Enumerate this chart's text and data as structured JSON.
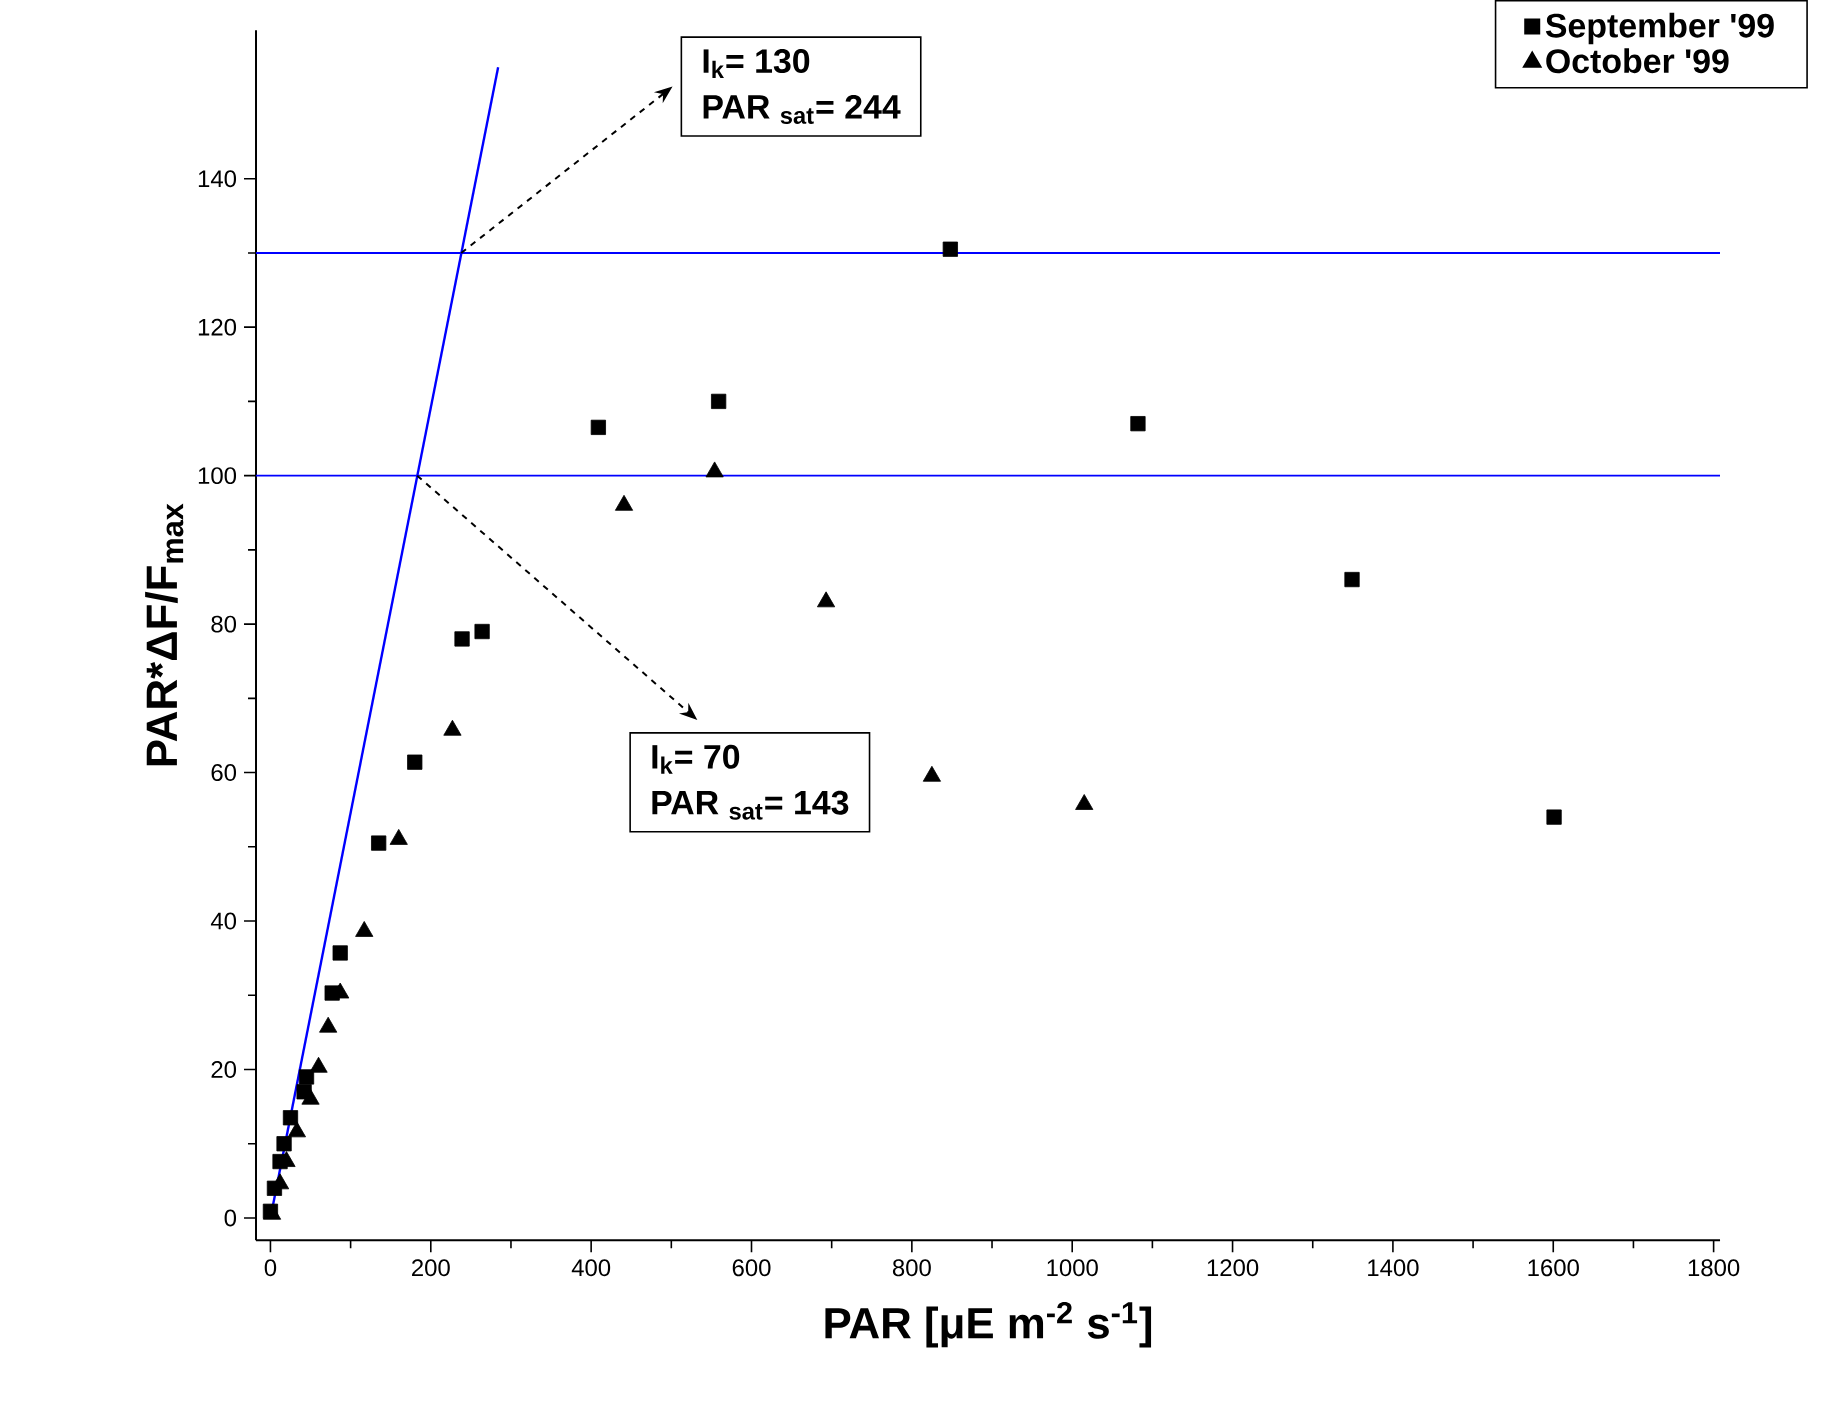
{
  "chart_data": {
    "type": "scatter",
    "xlabel": "PAR  [μE m$^{-2}$ s$^{-1}$]",
    "ylabel": "PAR*ΔF/F$_{max}$",
    "xlim": [
      -18,
      1808
    ],
    "ylim": [
      -3,
      160
    ],
    "xticks": [
      0,
      200,
      400,
      600,
      800,
      1000,
      1200,
      1400,
      1600,
      1800
    ],
    "yticks": [
      0,
      20,
      40,
      60,
      80,
      100,
      120,
      140
    ],
    "legend": "top right",
    "grid": false,
    "series": [
      {
        "name": "September '99",
        "color": "#000000",
        "marker": "square",
        "x": [
          0,
          5,
          12,
          17,
          25,
          42,
          45,
          77,
          87,
          135,
          180,
          239,
          264,
          409,
          559,
          848,
          1082,
          1349,
          1601
        ],
        "values": [
          0.9,
          4,
          7.6,
          10,
          13.5,
          17,
          19,
          30.3,
          35.7,
          50.5,
          61.4,
          78,
          79,
          106.5,
          110,
          130.5,
          107,
          86,
          54
        ]
      },
      {
        "name": "October '99",
        "color": "#000000",
        "marker": "triangle",
        "x": [
          2,
          12,
          20,
          33,
          50,
          60,
          72,
          87,
          117,
          160,
          227,
          441,
          554,
          693,
          825,
          1015
        ],
        "values": [
          0.5,
          4.6,
          7.6,
          11.6,
          16,
          20.3,
          25.7,
          30.3,
          38.6,
          51,
          65.7,
          96,
          100.5,
          83,
          59.5,
          55.7
        ]
      },
      {
        "type": "line",
        "color": "#0000ff",
        "marker": "none",
        "x": [
          0,
          284
        ],
        "values": [
          0,
          155
        ]
      }
    ],
    "ref_lines": [
      {
        "axis": "y",
        "value": 130,
        "color": "#0000ff"
      },
      {
        "axis": "y",
        "value": 100,
        "color": "#0000ff"
      }
    ],
    "annotations": [
      {
        "text": "I$_{k}$= 130",
        "x": 238,
        "y": 130
      },
      "PAR $_{sat}$= 244",
      {
        "text": "I$_{k}$= 70",
        "x": 183,
        "y": 100
      },
      "PAR $_{sat}$= 143"
    ]
  }
}
